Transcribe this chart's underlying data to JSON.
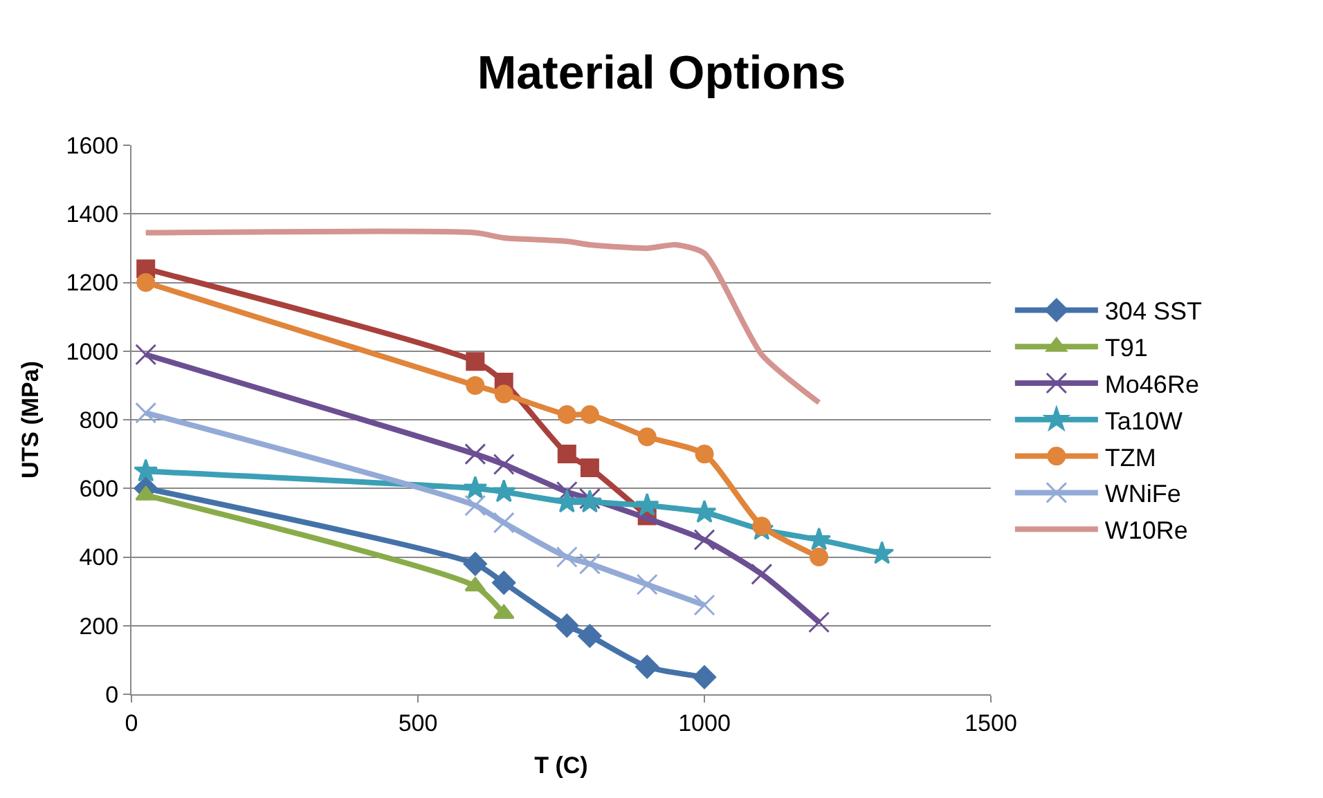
{
  "chart_data": {
    "type": "line",
    "title": "Material Options",
    "xlabel": "T (C)",
    "ylabel": "UTS (MPa)",
    "xlim": [
      0,
      1500
    ],
    "xticks": [
      0,
      500,
      1000,
      1500
    ],
    "ylim": [
      0,
      1600
    ],
    "yticks": [
      0,
      200,
      400,
      600,
      800,
      1000,
      1200,
      1400,
      1600
    ],
    "grid": "y",
    "legend": "right",
    "line_style": "solid",
    "series": [
      {
        "name": "304 SST",
        "color": "#4472a8",
        "marker": "diamond",
        "x": [
          25,
          600,
          650,
          760,
          800,
          900,
          1000
        ],
        "values": [
          600,
          380,
          325,
          200,
          170,
          80,
          50
        ]
      },
      {
        "color": "#a8403c",
        "marker": "square",
        "x": [
          25,
          600,
          650,
          760,
          800,
          900
        ],
        "values": [
          1240,
          970,
          910,
          700,
          660,
          520
        ]
      },
      {
        "name": "T91",
        "color": "#8aab4a",
        "marker": "triangle",
        "x": [
          25,
          600,
          650
        ],
        "values": [
          580,
          315,
          235
        ]
      },
      {
        "name": "Mo46Re",
        "color": "#6b4f92",
        "marker": "cross",
        "x": [
          25,
          600,
          650,
          760,
          800,
          1000,
          1100,
          1200
        ],
        "values": [
          990,
          700,
          670,
          590,
          570,
          450,
          350,
          210
        ]
      },
      {
        "name": "Ta10W",
        "color": "#3b9fb5",
        "marker": "star",
        "x": [
          25,
          600,
          650,
          760,
          800,
          900,
          1000,
          1100,
          1200,
          1310
        ],
        "values": [
          650,
          600,
          590,
          560,
          560,
          550,
          530,
          480,
          450,
          410
        ]
      },
      {
        "name": "TZM",
        "color": "#e0853a",
        "marker": "circle",
        "x": [
          25,
          600,
          650,
          760,
          800,
          900,
          1000,
          1100,
          1200
        ],
        "values": [
          1200,
          900,
          875,
          815,
          815,
          750,
          700,
          490,
          400
        ]
      },
      {
        "name": "WNiFe",
        "color": "#94aad6",
        "marker": "cross",
        "x": [
          25,
          600,
          650,
          760,
          800,
          900,
          1000
        ],
        "values": [
          820,
          550,
          500,
          400,
          380,
          320,
          260
        ]
      },
      {
        "name": "W10Re",
        "color": "#d49490",
        "marker": "none",
        "x": [
          25,
          600,
          650,
          760,
          800,
          900,
          950,
          1000,
          1100,
          1200
        ],
        "values": [
          1345,
          1345,
          1330,
          1320,
          1310,
          1300,
          1310,
          1285,
          990,
          850
        ]
      }
    ]
  }
}
